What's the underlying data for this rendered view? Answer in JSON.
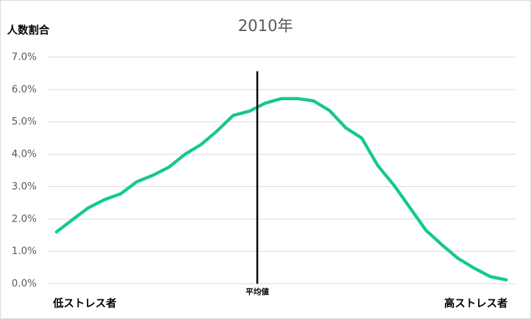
{
  "chart_data": {
    "type": "line",
    "title": "2010年",
    "y_label": "人数割合",
    "x": [
      0,
      1,
      2,
      3,
      4,
      5,
      6,
      7,
      8,
      9,
      10,
      11,
      12,
      13,
      14,
      15,
      16,
      17,
      18,
      19,
      20,
      21,
      22,
      23,
      24,
      25,
      26,
      27,
      28
    ],
    "categories": [
      "低ストレス者",
      null,
      null,
      null,
      null,
      null,
      null,
      null,
      null,
      null,
      null,
      null,
      null,
      null,
      null,
      null,
      null,
      null,
      null,
      null,
      null,
      null,
      null,
      null,
      null,
      null,
      null,
      null,
      "高ストレス者"
    ],
    "series": [
      {
        "name": "2010年",
        "color": "#14c98e",
        "values": [
          1.6,
          1.98,
          2.35,
          2.6,
          2.78,
          3.15,
          3.35,
          3.6,
          4.0,
          4.3,
          4.72,
          5.2,
          5.33,
          5.58,
          5.72,
          5.72,
          5.65,
          5.35,
          4.82,
          4.5,
          3.65,
          3.05,
          2.35,
          1.65,
          1.2,
          0.78,
          0.48,
          0.22,
          0.12
        ]
      }
    ],
    "mean": {
      "x": 12.5,
      "label": "平均値"
    },
    "xlim": [
      0,
      28
    ],
    "ylim": [
      0,
      7
    ],
    "yticks": [
      {
        "value": 0,
        "label": "0.0%"
      },
      {
        "value": 1,
        "label": "1.0%"
      },
      {
        "value": 2,
        "label": "2.0%"
      },
      {
        "value": 3,
        "label": "3.0%"
      },
      {
        "value": 4,
        "label": "4.0%"
      },
      {
        "value": 5,
        "label": "5.0%"
      },
      {
        "value": 6,
        "label": "6.0%"
      },
      {
        "value": 7,
        "label": "7.0%"
      }
    ],
    "grid": true
  }
}
